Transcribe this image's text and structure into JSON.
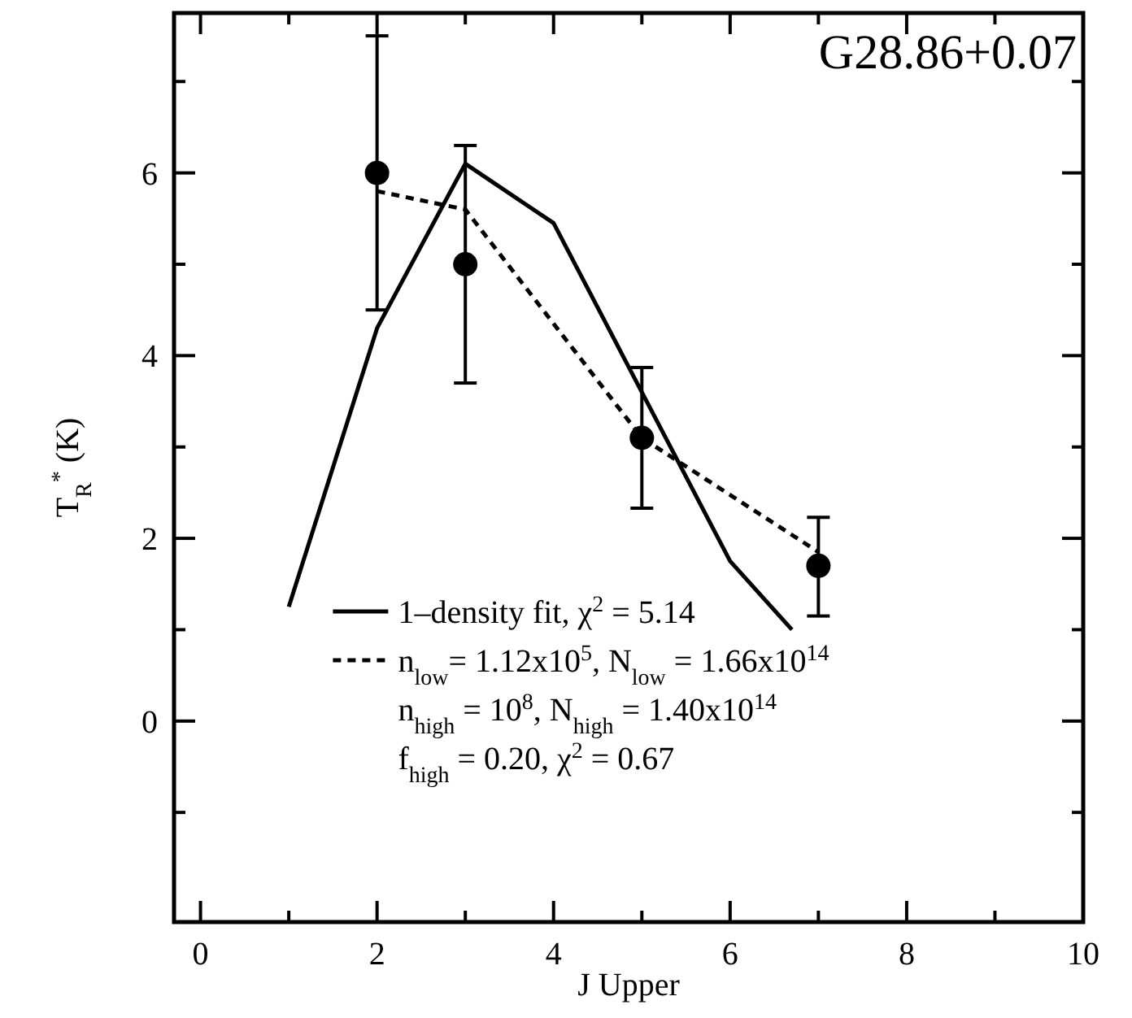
{
  "chart_data": {
    "type": "line",
    "title": "G28.86+0.07",
    "xlabel": "J Upper",
    "ylabel": "T$_{R}$$^{*}$ (K)",
    "xlim": [
      -0.3,
      10
    ],
    "ylim": [
      -2.2,
      7.75
    ],
    "xticks": [
      0,
      {
        "value": 1,
        "label": null
      },
      2,
      {
        "value": 3,
        "label": null
      },
      4,
      {
        "value": 5,
        "label": null
      },
      6,
      {
        "value": 7,
        "label": null
      },
      8,
      {
        "value": 9,
        "label": null
      },
      10
    ],
    "yticks": [
      {
        "value": -1,
        "label": null
      },
      0,
      {
        "value": 1,
        "label": null
      },
      2,
      {
        "value": 3,
        "label": null
      },
      4,
      {
        "value": 5,
        "label": null
      },
      6,
      {
        "value": 7,
        "label": null
      }
    ],
    "grid": false,
    "legend": "bottom",
    "series": [
      {
        "type": "scatter",
        "color": "#000000",
        "marker": "circle",
        "x": [
          2,
          3,
          5,
          7
        ],
        "values": [
          6,
          5,
          3.1,
          1.7
        ],
        "errors": [
          [
            4.5,
            7.5
          ],
          [
            3.7,
            6.3
          ],
          [
            2.33,
            3.87
          ],
          [
            1.15,
            2.23
          ]
        ]
      },
      {
        "type": "line",
        "name": "1–density fit, χ$^{2}$ = 5.14",
        "color": "#000000",
        "line_style": "solid",
        "marker": "none",
        "x": [
          1,
          2,
          3,
          4,
          5,
          6,
          6.7
        ],
        "values": [
          1.25,
          4.3,
          6.1,
          5.45,
          3.6,
          1.75,
          1.0
        ]
      },
      {
        "type": "line",
        "name": "n$_{low}$= 1.12x10$^{5}$, N$_{low}$ = 1.66x10$^{14}$",
        "color": "#000000",
        "line_style": "dashed",
        "marker": "none",
        "x": [
          2,
          3,
          5,
          7
        ],
        "values": [
          5.8,
          5.6,
          3.1,
          1.85
        ]
      }
    ],
    "annotations": [
      "n$_{high}$ = 10$^{8}$, N$_{high}$ = 1.40x10$^{14}$",
      "f$_{high}$ = 0.20,  χ$^{2}$ = 0.67"
    ]
  }
}
